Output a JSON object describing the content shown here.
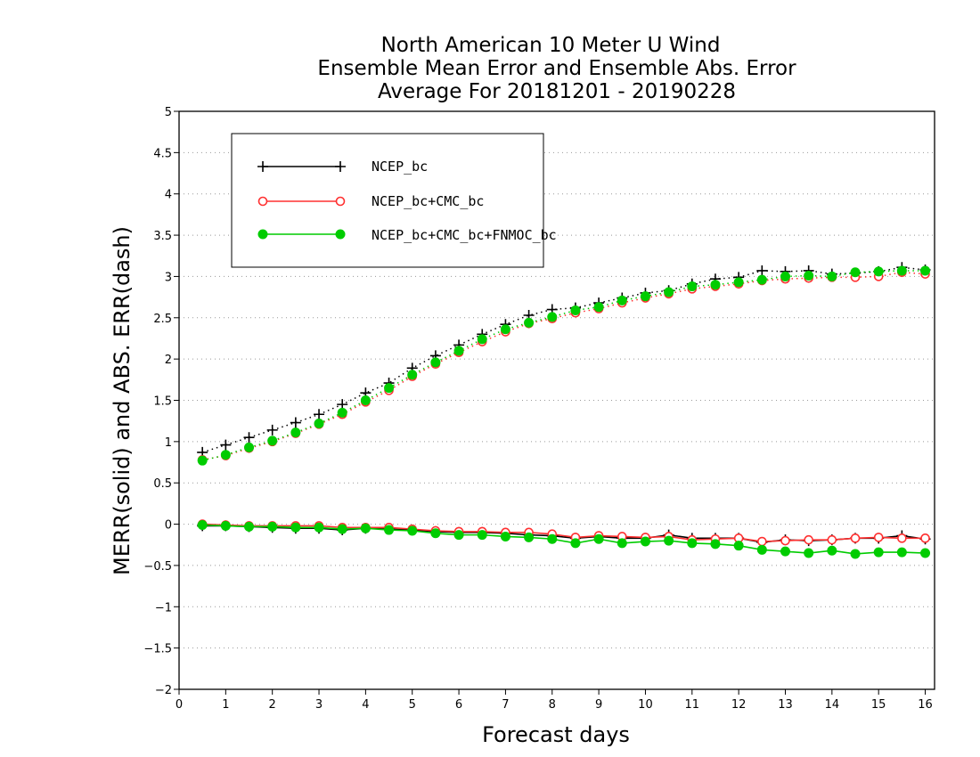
{
  "chart_data": {
    "type": "line",
    "title": [
      "North American 10 Meter U Wind",
      "Ensemble Mean Error and Ensemble Abs. Error",
      "Average For 20181201 - 20190228"
    ],
    "xlabel": "Forecast days",
    "ylabel": "MERR(solid) and ABS. ERR(dash)",
    "xlim": [
      0,
      16.2
    ],
    "ylim": [
      -2,
      5
    ],
    "xticks": [
      0,
      1,
      2,
      3,
      4,
      5,
      6,
      7,
      8,
      9,
      10,
      11,
      12,
      13,
      14,
      15,
      16
    ],
    "yticks": [
      -2,
      -1.5,
      -1,
      -0.5,
      0,
      0.5,
      1,
      1.5,
      2,
      2.5,
      3,
      3.5,
      4,
      4.5,
      5
    ],
    "grid": "horizontal dotted",
    "legend_position": "top-left",
    "x": [
      0.5,
      1,
      1.5,
      2,
      2.5,
      3,
      3.5,
      4,
      4.5,
      5,
      5.5,
      6,
      6.5,
      7,
      7.5,
      8,
      8.5,
      9,
      9.5,
      10,
      10.5,
      11,
      11.5,
      12,
      12.5,
      13,
      13.5,
      14,
      14.5,
      15,
      15.5,
      16
    ],
    "series": [
      {
        "name": "NCEP_bc",
        "color": "#000000",
        "marker": "plus",
        "merr": [
          -0.02,
          -0.02,
          -0.03,
          -0.04,
          -0.05,
          -0.05,
          -0.07,
          -0.05,
          -0.06,
          -0.07,
          -0.09,
          -0.1,
          -0.1,
          -0.11,
          -0.13,
          -0.14,
          -0.17,
          -0.15,
          -0.17,
          -0.17,
          -0.13,
          -0.17,
          -0.17,
          -0.17,
          -0.22,
          -0.19,
          -0.2,
          -0.19,
          -0.17,
          -0.17,
          -0.14,
          -0.18
        ],
        "abs_err": [
          0.87,
          0.96,
          1.05,
          1.14,
          1.23,
          1.33,
          1.45,
          1.59,
          1.71,
          1.89,
          2.04,
          2.17,
          2.3,
          2.42,
          2.53,
          2.6,
          2.62,
          2.68,
          2.74,
          2.8,
          2.83,
          2.91,
          2.97,
          2.99,
          3.07,
          3.06,
          3.07,
          3.03,
          3.04,
          3.06,
          3.11,
          3.08
        ]
      },
      {
        "name": "NCEP_bc+CMC_bc",
        "color": "#ff3030",
        "marker": "open-circle",
        "merr": [
          0,
          -0.01,
          -0.02,
          -0.02,
          -0.02,
          -0.02,
          -0.04,
          -0.04,
          -0.04,
          -0.06,
          -0.08,
          -0.09,
          -0.09,
          -0.1,
          -0.1,
          -0.12,
          -0.16,
          -0.14,
          -0.15,
          -0.16,
          -0.15,
          -0.19,
          -0.18,
          -0.17,
          -0.21,
          -0.2,
          -0.19,
          -0.19,
          -0.17,
          -0.16,
          -0.17,
          -0.17
        ],
        "abs_err": [
          0.78,
          0.83,
          0.92,
          1.0,
          1.1,
          1.21,
          1.33,
          1.48,
          1.62,
          1.79,
          1.94,
          2.08,
          2.21,
          2.33,
          2.43,
          2.49,
          2.56,
          2.61,
          2.68,
          2.74,
          2.79,
          2.85,
          2.88,
          2.91,
          2.95,
          2.97,
          2.98,
          2.99,
          2.99,
          3.0,
          3.05,
          3.03
        ]
      },
      {
        "name": "NCEP_bc+CMC_bc+FNMOC_bc",
        "color": "#00cc00",
        "marker": "filled-circle",
        "merr": [
          -0.01,
          -0.02,
          -0.03,
          -0.03,
          -0.04,
          -0.04,
          -0.06,
          -0.05,
          -0.07,
          -0.08,
          -0.11,
          -0.13,
          -0.13,
          -0.15,
          -0.16,
          -0.18,
          -0.23,
          -0.18,
          -0.23,
          -0.21,
          -0.2,
          -0.23,
          -0.24,
          -0.26,
          -0.31,
          -0.33,
          -0.35,
          -0.32,
          -0.36,
          -0.34,
          -0.34,
          -0.35
        ],
        "abs_err": [
          0.77,
          0.84,
          0.93,
          1.01,
          1.11,
          1.22,
          1.35,
          1.5,
          1.65,
          1.81,
          1.96,
          2.1,
          2.24,
          2.36,
          2.44,
          2.51,
          2.59,
          2.63,
          2.71,
          2.76,
          2.81,
          2.88,
          2.9,
          2.93,
          2.96,
          3.0,
          3.01,
          3.0,
          3.05,
          3.06,
          3.07,
          3.07
        ]
      }
    ]
  }
}
